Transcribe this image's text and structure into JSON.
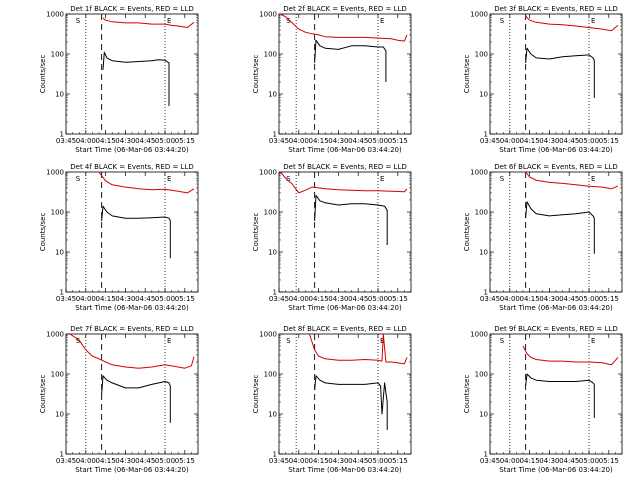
{
  "figure": {
    "background": "#ffffff",
    "event_color": "#000000",
    "lld_color": "#d40000",
    "marker_labels": {
      "start": "S",
      "end": "E"
    }
  },
  "chart_data": [
    {
      "type": "line",
      "title": "Det 1f BLACK = Events, RED = LLD",
      "xlabel": "Start Time (06-Mar-06 03:44:20)",
      "ylabel": "Counts/sec",
      "yscale": "log",
      "ylim": [
        1,
        1000
      ],
      "xlim": [
        "03:45",
        "05:25"
      ],
      "x_ticks": [
        "03:45",
        "04:00",
        "04:15",
        "04:30",
        "04:45",
        "05:00",
        "05:15"
      ],
      "y_ticks": [
        "1",
        "10",
        "100",
        "1000"
      ],
      "dotted_lines": [
        "04:00",
        "05:00"
      ],
      "dashed_line": "04:12",
      "series": [
        {
          "x": [
            "04:13",
            "04:15",
            "04:20",
            "04:30",
            "04:40",
            "04:50",
            "05:00",
            "05:05",
            "05:10",
            "05:17",
            "05:22"
          ],
          "values": [
            800,
            700,
            640,
            600,
            600,
            560,
            560,
            520,
            500,
            460,
            620
          ]
        },
        {
          "x": [
            "04:13",
            "04:14",
            "04:16",
            "04:20",
            "04:30",
            "04:40",
            "04:50",
            "04:55",
            "05:00",
            "05:03",
            "05:03"
          ],
          "values": [
            40,
            110,
            80,
            68,
            62,
            65,
            68,
            72,
            70,
            60,
            5
          ]
        }
      ]
    },
    {
      "type": "line",
      "title": "Det 2f BLACK = Events, RED = LLD",
      "xlabel": "Start Time (06-Mar-06 03:44:20)",
      "ylabel": "Counts/sec",
      "yscale": "log",
      "ylim": [
        1,
        1000
      ],
      "xlim": [
        "03:45",
        "05:25"
      ],
      "x_ticks": [
        "03:45",
        "04:00",
        "04:15",
        "04:30",
        "04:45",
        "05:00",
        "05:15"
      ],
      "y_ticks": [
        "1",
        "10",
        "100",
        "1000"
      ],
      "dotted_lines": [
        "03:58",
        "05:00"
      ],
      "dashed_line": "04:12",
      "series": [
        {
          "x": [
            "03:46",
            "03:50",
            "03:55",
            "04:00",
            "04:05",
            "04:10",
            "04:15",
            "04:20",
            "04:30",
            "04:40",
            "04:50",
            "05:00",
            "05:10",
            "05:15",
            "05:20",
            "05:22"
          ],
          "values": [
            1000,
            850,
            600,
            420,
            350,
            320,
            300,
            270,
            260,
            260,
            260,
            250,
            240,
            220,
            210,
            300
          ]
        },
        {
          "x": [
            "04:12",
            "04:13",
            "04:16",
            "04:20",
            "04:30",
            "04:40",
            "04:50",
            "05:00",
            "05:04",
            "05:06",
            "05:06"
          ],
          "values": [
            60,
            220,
            160,
            140,
            130,
            160,
            160,
            150,
            150,
            120,
            20
          ]
        }
      ]
    },
    {
      "type": "line",
      "title": "Det 3f BLACK = Events, RED = LLD",
      "xlabel": "Start Time (06-Mar-06 03:44:20)",
      "ylabel": "Counts/sec",
      "yscale": "log",
      "ylim": [
        1,
        1000
      ],
      "xlim": [
        "03:45",
        "05:25"
      ],
      "x_ticks": [
        "03:45",
        "04:00",
        "04:15",
        "04:30",
        "04:45",
        "05:00",
        "05:15"
      ],
      "y_ticks": [
        "1",
        "10",
        "100",
        "1000"
      ],
      "dotted_lines": [
        "04:00",
        "05:00"
      ],
      "dashed_line": "04:12",
      "series": [
        {
          "x": [
            "04:12",
            "04:15",
            "04:20",
            "04:30",
            "04:40",
            "04:50",
            "05:00",
            "05:10",
            "05:17",
            "05:22"
          ],
          "values": [
            900,
            700,
            620,
            560,
            540,
            500,
            460,
            420,
            380,
            520
          ]
        },
        {
          "x": [
            "04:12",
            "04:13",
            "04:16",
            "04:20",
            "04:30",
            "04:40",
            "04:50",
            "05:00",
            "05:03",
            "05:04",
            "05:04"
          ],
          "values": [
            60,
            140,
            100,
            80,
            75,
            85,
            90,
            95,
            80,
            70,
            8
          ]
        }
      ]
    },
    {
      "type": "line",
      "title": "Det 4f BLACK = Events, RED = LLD",
      "xlabel": "Start Time (06-Mar-06 03:44:20)",
      "ylabel": "Counts/sec",
      "yscale": "log",
      "ylim": [
        1,
        1000
      ],
      "xlim": [
        "03:45",
        "05:25"
      ],
      "x_ticks": [
        "03:45",
        "04:00",
        "04:15",
        "04:30",
        "04:45",
        "05:00",
        "05:15"
      ],
      "y_ticks": [
        "1",
        "10",
        "100",
        "1000"
      ],
      "dotted_lines": [
        "04:00",
        "05:00"
      ],
      "dashed_line": "04:12",
      "series": [
        {
          "x": [
            "04:10",
            "04:15",
            "04:20",
            "04:30",
            "04:40",
            "04:50",
            "05:00",
            "05:10",
            "05:17",
            "05:22"
          ],
          "values": [
            1000,
            600,
            480,
            420,
            380,
            360,
            370,
            330,
            300,
            380
          ]
        },
        {
          "x": [
            "04:12",
            "04:13",
            "04:16",
            "04:20",
            "04:30",
            "04:40",
            "04:50",
            "05:00",
            "05:03",
            "05:04",
            "05:04"
          ],
          "values": [
            60,
            140,
            100,
            80,
            70,
            70,
            72,
            75,
            70,
            60,
            7
          ]
        }
      ]
    },
    {
      "type": "line",
      "title": "Det 5f BLACK = Events, RED = LLD",
      "xlabel": "Start Time (06-Mar-06 03:44:20)",
      "ylabel": "Counts/sec",
      "yscale": "log",
      "ylim": [
        1,
        1000
      ],
      "xlim": [
        "03:45",
        "05:25"
      ],
      "x_ticks": [
        "03:45",
        "04:00",
        "04:15",
        "04:30",
        "04:45",
        "05:00",
        "05:15"
      ],
      "y_ticks": [
        "1",
        "10",
        "100",
        "1000"
      ],
      "dotted_lines": [
        "03:58",
        "05:00"
      ],
      "dashed_line": "04:12",
      "series": [
        {
          "x": [
            "03:46",
            "03:50",
            "03:55",
            "04:00",
            "04:05",
            "04:10",
            "04:15",
            "04:20",
            "04:30",
            "04:40",
            "04:50",
            "05:00",
            "05:10",
            "05:20",
            "05:22"
          ],
          "values": [
            1000,
            700,
            500,
            300,
            350,
            420,
            400,
            380,
            360,
            350,
            340,
            340,
            330,
            320,
            380
          ]
        },
        {
          "x": [
            "04:12",
            "04:13",
            "04:16",
            "04:20",
            "04:30",
            "04:40",
            "04:50",
            "05:00",
            "05:05",
            "05:07",
            "05:07"
          ],
          "values": [
            60,
            260,
            190,
            170,
            150,
            160,
            160,
            150,
            140,
            110,
            15
          ]
        }
      ]
    },
    {
      "type": "line",
      "title": "Det 6f BLACK = Events, RED = LLD",
      "xlabel": "Start Time (06-Mar-06 03:44:20)",
      "ylabel": "Counts/sec",
      "yscale": "log",
      "ylim": [
        1,
        1000
      ],
      "xlim": [
        "03:45",
        "05:25"
      ],
      "x_ticks": [
        "03:45",
        "04:00",
        "04:15",
        "04:30",
        "04:45",
        "05:00",
        "05:15"
      ],
      "y_ticks": [
        "1",
        "10",
        "100",
        "1000"
      ],
      "dotted_lines": [
        "04:00",
        "05:00"
      ],
      "dashed_line": "04:12",
      "series": [
        {
          "x": [
            "04:12",
            "04:15",
            "04:20",
            "04:30",
            "04:40",
            "04:50",
            "05:00",
            "05:10",
            "05:17",
            "05:22"
          ],
          "values": [
            1000,
            750,
            620,
            550,
            520,
            480,
            440,
            420,
            380,
            450
          ]
        },
        {
          "x": [
            "04:12",
            "04:13",
            "04:16",
            "04:20",
            "04:30",
            "04:40",
            "04:50",
            "05:00",
            "05:03",
            "05:04",
            "05:04"
          ],
          "values": [
            70,
            180,
            120,
            90,
            80,
            85,
            90,
            100,
            80,
            70,
            9
          ]
        }
      ]
    },
    {
      "type": "line",
      "title": "Det 7f BLACK = Events, RED = LLD",
      "xlabel": "Start Time (06-Mar-06 03:44:20)",
      "ylabel": "Counts/sec",
      "yscale": "log",
      "ylim": [
        1,
        1000
      ],
      "xlim": [
        "03:45",
        "05:25"
      ],
      "x_ticks": [
        "03:45",
        "04:00",
        "04:15",
        "04:30",
        "04:45",
        "05:00",
        "05:15"
      ],
      "y_ticks": [
        "1",
        "10",
        "100",
        "1000"
      ],
      "dotted_lines": [
        "04:00",
        "05:00"
      ],
      "dashed_line": "04:12",
      "series": [
        {
          "x": [
            "03:48",
            "03:55",
            "04:00",
            "04:05",
            "04:10",
            "04:15",
            "04:20",
            "04:30",
            "04:40",
            "04:50",
            "05:00",
            "05:10",
            "05:15",
            "05:20",
            "05:22"
          ],
          "values": [
            1000,
            700,
            400,
            280,
            240,
            200,
            170,
            150,
            140,
            150,
            170,
            150,
            140,
            160,
            270
          ]
        },
        {
          "x": [
            "04:12",
            "04:13",
            "04:16",
            "04:20",
            "04:30",
            "04:40",
            "04:50",
            "05:00",
            "05:03",
            "05:04",
            "05:04"
          ],
          "values": [
            30,
            90,
            70,
            60,
            45,
            45,
            55,
            65,
            60,
            50,
            6
          ]
        }
      ]
    },
    {
      "type": "line",
      "title": "Det 8f BLACK = Events, RED = LLD",
      "xlabel": "Start Time (06-Mar-06 03:44:20)",
      "ylabel": "Counts/sec",
      "yscale": "log",
      "ylim": [
        1,
        1000
      ],
      "xlim": [
        "03:45",
        "05:25"
      ],
      "x_ticks": [
        "03:45",
        "04:00",
        "04:15",
        "04:30",
        "04:45",
        "05:00",
        "05:15"
      ],
      "y_ticks": [
        "1",
        "10",
        "100",
        "1000"
      ],
      "dotted_lines": [
        "03:58",
        "05:00"
      ],
      "dashed_line": "04:12",
      "series": [
        {
          "x": [
            "04:08",
            "04:12",
            "04:15",
            "04:20",
            "04:30",
            "04:40",
            "04:50",
            "05:00",
            "05:03",
            "05:04",
            "05:06",
            "05:10",
            "05:20",
            "05:22"
          ],
          "values": [
            1000,
            400,
            280,
            240,
            220,
            220,
            230,
            220,
            210,
            1000,
            200,
            200,
            180,
            260
          ]
        },
        {
          "x": [
            "04:12",
            "04:13",
            "04:16",
            "04:20",
            "04:30",
            "04:40",
            "04:50",
            "05:00",
            "05:02",
            "05:03",
            "05:05",
            "05:07",
            "05:07"
          ],
          "values": [
            40,
            90,
            70,
            60,
            55,
            55,
            55,
            60,
            50,
            10,
            60,
            20,
            4
          ]
        }
      ]
    },
    {
      "type": "line",
      "title": "Det 9f BLACK = Events, RED = LLD",
      "xlabel": "Start Time (06-Mar-06 03:44:20)",
      "ylabel": "Counts/sec",
      "yscale": "log",
      "ylim": [
        1,
        1000
      ],
      "xlim": [
        "03:45",
        "05:25"
      ],
      "x_ticks": [
        "03:45",
        "04:00",
        "04:15",
        "04:30",
        "04:45",
        "05:00",
        "05:15"
      ],
      "y_ticks": [
        "1",
        "10",
        "100",
        "1000"
      ],
      "dotted_lines": [
        "04:00",
        "05:00"
      ],
      "dashed_line": "04:12",
      "series": [
        {
          "x": [
            "04:10",
            "04:13",
            "04:16",
            "04:20",
            "04:30",
            "04:40",
            "04:50",
            "05:00",
            "05:10",
            "05:17",
            "05:22"
          ],
          "values": [
            500,
            320,
            260,
            230,
            210,
            210,
            200,
            200,
            190,
            170,
            260
          ]
        },
        {
          "x": [
            "04:12",
            "04:13",
            "04:16",
            "04:20",
            "04:30",
            "04:40",
            "04:50",
            "05:00",
            "05:03",
            "05:04",
            "05:04"
          ],
          "values": [
            50,
            100,
            80,
            70,
            65,
            65,
            65,
            70,
            60,
            55,
            8
          ]
        }
      ]
    }
  ]
}
